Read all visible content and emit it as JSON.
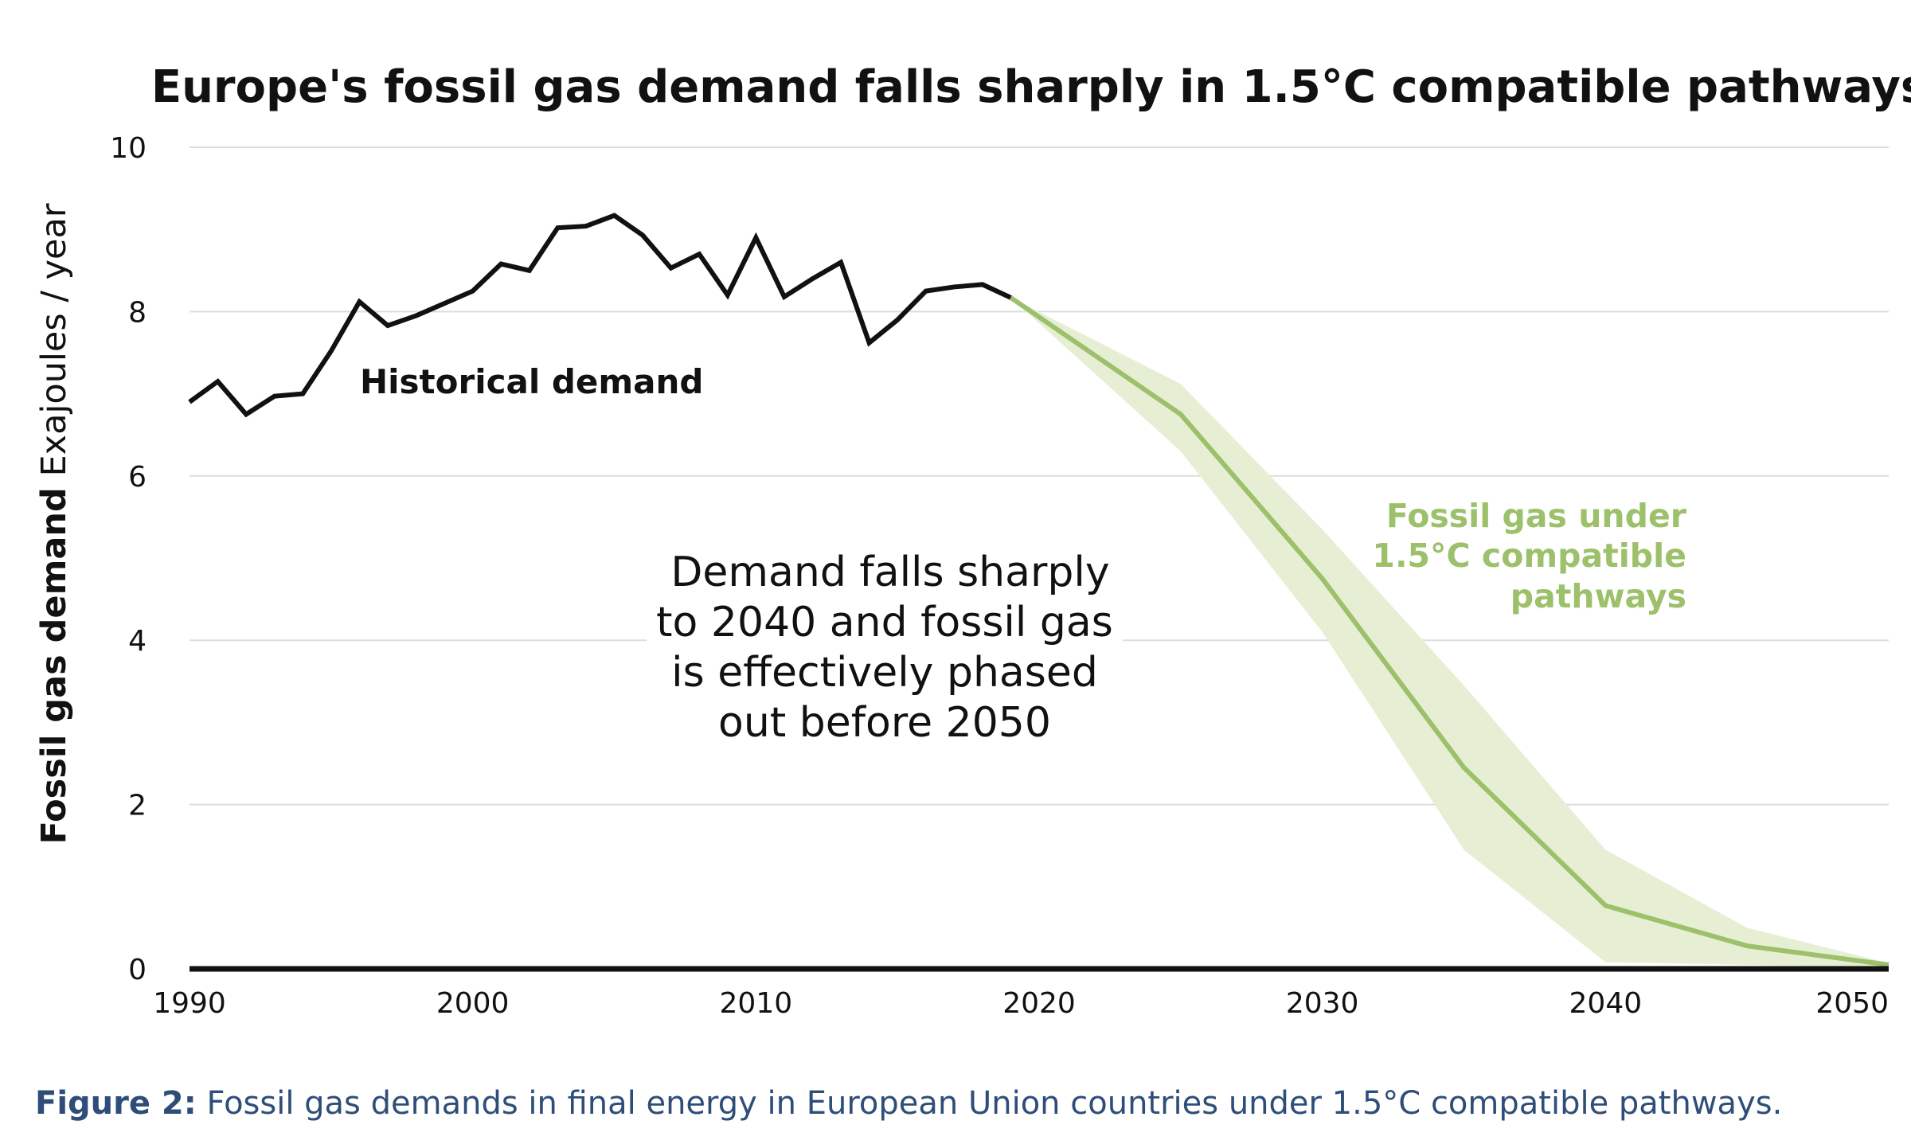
{
  "colors": {
    "historical": "#111111",
    "pathway": "#9dc06b",
    "band": "#e6efd4",
    "grid": "#dddddd",
    "axis": "#111111",
    "caption": "#2e4e79"
  },
  "caption": {
    "label": "Figure 2:",
    "text": " Fossil gas demands in final energy in European Union countries under 1.5°C compatible pathways."
  },
  "chart_data": {
    "type": "line",
    "title": "Europe's fossil gas demand falls sharply in 1.5°C compatible pathways",
    "ylabel_bold": "Fossil gas demand",
    "ylabel_unit": " Exajoules / year",
    "xlim": [
      1990,
      2050
    ],
    "ylim": [
      0,
      10
    ],
    "grid": true,
    "x_ticks": [
      1990,
      2000,
      2010,
      2020,
      2030,
      2040,
      2050
    ],
    "x_tick_labels": [
      "1990",
      "2000",
      "2010",
      "2020",
      "2030",
      "2040",
      "2050"
    ],
    "y_ticks": [
      0,
      2,
      4,
      6,
      8,
      10
    ],
    "y_tick_labels": [
      "0",
      "2",
      "4",
      "6",
      "8",
      "10"
    ],
    "series": [
      {
        "name": "Historical demand",
        "x": [
          1990,
          1991,
          1992,
          1993,
          1994,
          1995,
          1996,
          1997,
          1998,
          1999,
          2000,
          2001,
          2002,
          2003,
          2004,
          2005,
          2006,
          2007,
          2008,
          2009,
          2010,
          2011,
          2012,
          2013,
          2014,
          2015,
          2016,
          2017,
          2018,
          2019
        ],
        "y": [
          6.9,
          7.15,
          6.75,
          6.97,
          7.0,
          7.52,
          8.12,
          7.83,
          7.95,
          8.1,
          8.25,
          8.58,
          8.5,
          9.02,
          9.04,
          9.17,
          8.93,
          8.53,
          8.7,
          8.2,
          8.9,
          8.18,
          8.4,
          8.6,
          7.62,
          7.9,
          8.25,
          8.3,
          8.33,
          8.17
        ]
      },
      {
        "name": "Fossil gas under 1.5°C compatible pathways",
        "x": [
          2019,
          2025,
          2030,
          2035,
          2040,
          2045,
          2050
        ],
        "y": [
          8.17,
          6.75,
          4.75,
          2.45,
          0.77,
          0.28,
          0.05
        ],
        "band_lower": [
          8.17,
          6.3,
          4.1,
          1.45,
          0.08,
          0.05,
          0.02
        ],
        "band_upper": [
          8.17,
          7.12,
          5.35,
          3.45,
          1.45,
          0.5,
          0.07
        ]
      }
    ],
    "annotations": [
      "Historical demand",
      "Demand falls sharply",
      "to 2040 and fossil gas",
      "is effectively phased",
      "out before 2050",
      "Fossil gas under",
      "1.5°C compatible",
      "pathways"
    ]
  }
}
